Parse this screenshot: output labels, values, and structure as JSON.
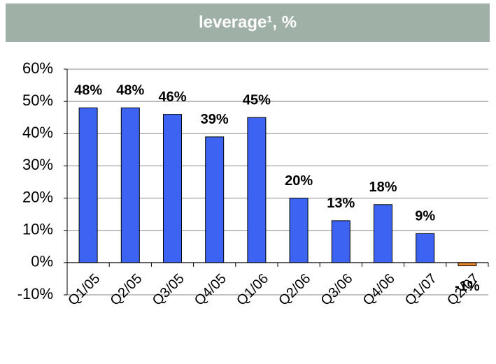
{
  "chart_data": {
    "type": "bar",
    "title": "leverage¹, %",
    "categories": [
      "Q1/05",
      "Q2/05",
      "Q3/05",
      "Q4/05",
      "Q1/06",
      "Q2/06",
      "Q3/06",
      "Q4/06",
      "Q1/07",
      "Q2/07"
    ],
    "values": [
      48,
      48,
      46,
      39,
      45,
      20,
      13,
      18,
      9,
      -1
    ],
    "value_labels": [
      "48%",
      "48%",
      "46%",
      "39%",
      "45%",
      "20%",
      "13%",
      "18%",
      "9%",
      "-1%"
    ],
    "colors": [
      "#3d63f2",
      "#3d63f2",
      "#3d63f2",
      "#3d63f2",
      "#3d63f2",
      "#3d63f2",
      "#3d63f2",
      "#3d63f2",
      "#3d63f2",
      "#e2842a"
    ],
    "ylim": [
      -10,
      60
    ],
    "yticks": [
      {
        "value": -10,
        "label": "-10%"
      },
      {
        "value": 0,
        "label": "0%"
      },
      {
        "value": 10,
        "label": "10%"
      },
      {
        "value": 20,
        "label": "20%"
      },
      {
        "value": 30,
        "label": "30%"
      },
      {
        "value": 40,
        "label": "40%"
      },
      {
        "value": 50,
        "label": "50%"
      },
      {
        "value": 60,
        "label": "60%"
      }
    ],
    "grid": true
  }
}
